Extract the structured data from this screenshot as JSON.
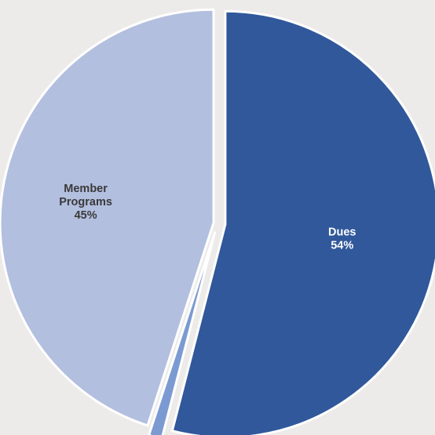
{
  "chart_data": {
    "type": "pie",
    "exploded": true,
    "slices": [
      {
        "name": "Dues",
        "value": 54,
        "label_lines": [
          "Dues",
          "54%"
        ],
        "color": "#30589b",
        "text_color": "#ffffff"
      },
      {
        "name": "",
        "value": 1,
        "label_lines": [],
        "color": "#7c9ad2",
        "text_color": "#ffffff"
      },
      {
        "name": "Member Programs",
        "value": 45,
        "label_lines": [
          "Member",
          "Programs",
          "45%"
        ],
        "color": "#b3bfdf",
        "text_color": "#3a3a3a"
      }
    ],
    "background": "#edebe9",
    "slice_border": "#ffffff"
  }
}
